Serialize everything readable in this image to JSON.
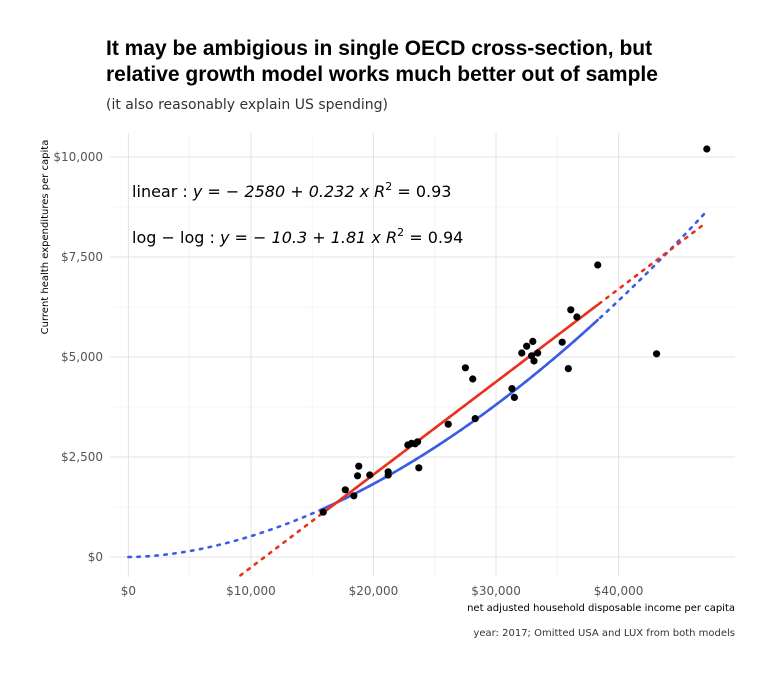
{
  "chart_data": {
    "type": "scatter",
    "title_lines": [
      "It may be ambigious in single OECD cross-section, but",
      "relative growth model works much better out of sample"
    ],
    "subtitle": "(it also reasonably explain US spending)",
    "xlabel": "net adjusted household disposable income per capita",
    "ylabel": "Current health expenditures per capita",
    "caption": "year: 2017; Omitted USA and LUX from both models",
    "xlim": [
      -1500,
      49500
    ],
    "ylim": [
      -500,
      10600
    ],
    "x_ticks": [
      {
        "value": 0,
        "label": "$0"
      },
      {
        "value": 10000,
        "label": "$10,000"
      },
      {
        "value": 20000,
        "label": "$20,000"
      },
      {
        "value": 30000,
        "label": "$30,000"
      },
      {
        "value": 40000,
        "label": "$40,000"
      }
    ],
    "y_ticks": [
      {
        "value": 0,
        "label": "$0"
      },
      {
        "value": 2500,
        "label": "$2,500"
      },
      {
        "value": 5000,
        "label": "$5,000"
      },
      {
        "value": 7500,
        "label": "$7,500"
      },
      {
        "value": 10000,
        "label": "$10,000"
      }
    ],
    "grid": true,
    "annotations": [
      {
        "name": "linear",
        "label": "linear :",
        "formula": "y = − 2580 + 0.232 x",
        "r2_text": "R",
        "r2_sup": "2",
        "r2_value": " = 0.93",
        "anchor_x": 300,
        "anchor_y": 9000
      },
      {
        "name": "loglog",
        "label": "log − log :",
        "formula": "y = − 10.3 + 1.81 x",
        "r2_text": "R",
        "r2_sup": "2",
        "r2_value": " = 0.94",
        "anchor_x": 300,
        "anchor_y": 7850
      }
    ],
    "series": [
      {
        "name": "observed",
        "kind": "points",
        "color": "#000000",
        "points": [
          [
            15900,
            1120
          ],
          [
            17700,
            1680
          ],
          [
            18400,
            1530
          ],
          [
            18700,
            2030
          ],
          [
            18800,
            2270
          ],
          [
            19700,
            2050
          ],
          [
            21200,
            2050
          ],
          [
            21200,
            2130
          ],
          [
            22800,
            2800
          ],
          [
            23100,
            2840
          ],
          [
            23400,
            2830
          ],
          [
            23600,
            2880
          ],
          [
            23700,
            2230
          ],
          [
            26100,
            3320
          ],
          [
            27500,
            4730
          ],
          [
            28100,
            4450
          ],
          [
            28300,
            3460
          ],
          [
            31300,
            4210
          ],
          [
            31500,
            3990
          ],
          [
            32100,
            5100
          ],
          [
            32500,
            5270
          ],
          [
            32900,
            5030
          ],
          [
            33000,
            5390
          ],
          [
            33100,
            4900
          ],
          [
            33400,
            5100
          ],
          [
            35400,
            5370
          ],
          [
            35900,
            4710
          ],
          [
            36100,
            6180
          ],
          [
            36600,
            6000
          ],
          [
            38300,
            7300
          ],
          [
            43100,
            5080
          ],
          [
            47200,
            10200
          ]
        ]
      },
      {
        "name": "linear-fit",
        "kind": "line",
        "color": "#e8321e",
        "x_range": [
          8500,
          47000
        ],
        "fit_range": [
          15900,
          38300
        ],
        "intercept": -2580,
        "slope": 0.232
      },
      {
        "name": "loglog-fit",
        "kind": "line",
        "color": "#3a5de8",
        "x_range": [
          0,
          47000
        ],
        "fit_range": [
          15900,
          38300
        ],
        "scale": 3e-05,
        "exponent": 1.81
      }
    ]
  }
}
